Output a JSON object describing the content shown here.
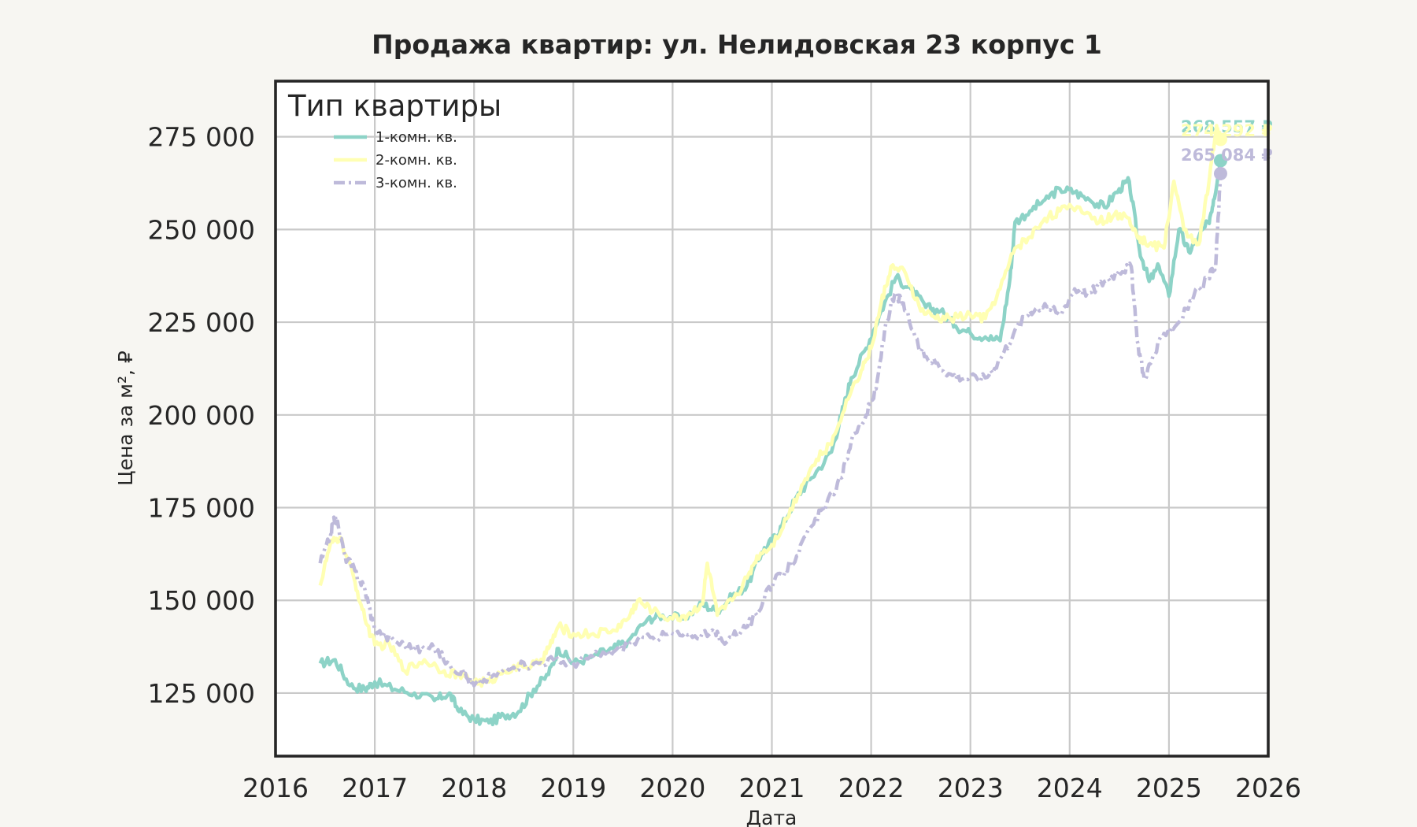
{
  "chart_data": {
    "type": "line",
    "title": "Продажа квартир: ул. Нелидовская 23 корпус 1",
    "xlabel": "Дата",
    "ylabel": "Цена за м², ₽",
    "xlim": [
      2016,
      2026
    ],
    "ylim": [
      108000,
      290000
    ],
    "x_ticks": [
      "2016",
      "2017",
      "2018",
      "2019",
      "2020",
      "2021",
      "2022",
      "2023",
      "2024",
      "2025",
      "2026"
    ],
    "y_ticks": [
      "125 000",
      "150 000",
      "175 000",
      "200 000",
      "225 000",
      "250 000",
      "275 000"
    ],
    "grid": true,
    "legend": {
      "title": "Тип квартиры",
      "placement": "top-left"
    },
    "series": [
      {
        "name": "1-комн. кв.",
        "color": "#8dd3c7",
        "dash": "solid",
        "end_label": "268 557 ₽",
        "points": [
          [
            2016.45,
            133000
          ],
          [
            2016.6,
            134000
          ],
          [
            2016.75,
            127000
          ],
          [
            2016.9,
            126000
          ],
          [
            2017.0,
            128000
          ],
          [
            2017.2,
            126000
          ],
          [
            2017.4,
            125000
          ],
          [
            2017.6,
            123000
          ],
          [
            2017.75,
            125000
          ],
          [
            2017.85,
            120000
          ],
          [
            2018.0,
            118000
          ],
          [
            2018.15,
            117000
          ],
          [
            2018.3,
            119000
          ],
          [
            2018.45,
            120000
          ],
          [
            2018.6,
            126000
          ],
          [
            2018.75,
            130000
          ],
          [
            2018.85,
            137000
          ],
          [
            2019.0,
            133000
          ],
          [
            2019.2,
            135000
          ],
          [
            2019.4,
            137000
          ],
          [
            2019.55,
            139000
          ],
          [
            2019.75,
            145000
          ],
          [
            2019.9,
            146000
          ],
          [
            2020.1,
            145000
          ],
          [
            2020.3,
            149000
          ],
          [
            2020.45,
            147000
          ],
          [
            2020.6,
            151000
          ],
          [
            2020.75,
            154000
          ],
          [
            2020.9,
            163000
          ],
          [
            2021.0,
            166000
          ],
          [
            2021.1,
            170000
          ],
          [
            2021.25,
            178000
          ],
          [
            2021.4,
            183000
          ],
          [
            2021.6,
            190000
          ],
          [
            2021.7,
            200000
          ],
          [
            2021.8,
            210000
          ],
          [
            2021.95,
            218000
          ],
          [
            2022.1,
            228000
          ],
          [
            2022.25,
            237000
          ],
          [
            2022.4,
            234000
          ],
          [
            2022.55,
            229000
          ],
          [
            2022.7,
            228000
          ],
          [
            2022.85,
            224000
          ],
          [
            2023.0,
            222000
          ],
          [
            2023.15,
            221000
          ],
          [
            2023.3,
            220000
          ],
          [
            2023.4,
            237000
          ],
          [
            2023.45,
            252000
          ],
          [
            2023.6,
            255000
          ],
          [
            2023.75,
            258000
          ],
          [
            2023.9,
            261000
          ],
          [
            2024.05,
            260000
          ],
          [
            2024.2,
            258000
          ],
          [
            2024.35,
            256000
          ],
          [
            2024.5,
            261000
          ],
          [
            2024.6,
            263000
          ],
          [
            2024.7,
            245000
          ],
          [
            2024.8,
            236000
          ],
          [
            2024.9,
            240000
          ],
          [
            2025.0,
            232000
          ],
          [
            2025.1,
            250000
          ],
          [
            2025.2,
            244000
          ],
          [
            2025.3,
            248000
          ],
          [
            2025.4,
            252000
          ],
          [
            2025.45,
            258000
          ],
          [
            2025.52,
            268557
          ]
        ]
      },
      {
        "name": "2-комн. кв.",
        "color": "#ffffb3",
        "dash": "solid",
        "end_label": "274 292 ₽",
        "points": [
          [
            2016.45,
            154000
          ],
          [
            2016.55,
            165000
          ],
          [
            2016.65,
            167000
          ],
          [
            2016.8,
            155000
          ],
          [
            2016.9,
            145000
          ],
          [
            2017.0,
            138000
          ],
          [
            2017.15,
            138000
          ],
          [
            2017.3,
            131000
          ],
          [
            2017.5,
            134000
          ],
          [
            2017.7,
            131000
          ],
          [
            2017.85,
            130000
          ],
          [
            2018.0,
            128000
          ],
          [
            2018.15,
            128000
          ],
          [
            2018.3,
            131000
          ],
          [
            2018.5,
            132000
          ],
          [
            2018.65,
            133000
          ],
          [
            2018.75,
            137000
          ],
          [
            2018.85,
            143000
          ],
          [
            2019.0,
            141000
          ],
          [
            2019.2,
            141000
          ],
          [
            2019.4,
            142000
          ],
          [
            2019.55,
            145000
          ],
          [
            2019.65,
            150000
          ],
          [
            2019.8,
            147000
          ],
          [
            2020.0,
            145000
          ],
          [
            2020.15,
            146000
          ],
          [
            2020.3,
            149000
          ],
          [
            2020.35,
            160000
          ],
          [
            2020.45,
            146000
          ],
          [
            2020.6,
            150000
          ],
          [
            2020.75,
            156000
          ],
          [
            2020.85,
            162000
          ],
          [
            2021.0,
            165000
          ],
          [
            2021.15,
            172000
          ],
          [
            2021.3,
            181000
          ],
          [
            2021.45,
            188000
          ],
          [
            2021.6,
            192000
          ],
          [
            2021.75,
            204000
          ],
          [
            2021.9,
            212000
          ],
          [
            2022.0,
            218000
          ],
          [
            2022.1,
            230000
          ],
          [
            2022.2,
            240000
          ],
          [
            2022.35,
            238000
          ],
          [
            2022.5,
            228000
          ],
          [
            2022.65,
            226000
          ],
          [
            2022.8,
            226000
          ],
          [
            2023.0,
            227000
          ],
          [
            2023.15,
            226000
          ],
          [
            2023.3,
            234000
          ],
          [
            2023.45,
            245000
          ],
          [
            2023.6,
            248000
          ],
          [
            2023.75,
            253000
          ],
          [
            2023.9,
            255000
          ],
          [
            2024.1,
            256000
          ],
          [
            2024.3,
            252000
          ],
          [
            2024.45,
            254000
          ],
          [
            2024.6,
            253000
          ],
          [
            2024.7,
            248000
          ],
          [
            2024.8,
            246000
          ],
          [
            2024.95,
            245000
          ],
          [
            2025.05,
            263000
          ],
          [
            2025.15,
            250000
          ],
          [
            2025.3,
            246000
          ],
          [
            2025.4,
            262000
          ],
          [
            2025.48,
            278000
          ],
          [
            2025.52,
            274292
          ]
        ]
      },
      {
        "name": "3-комн. кв.",
        "color": "#bebada",
        "dash": "dashdot",
        "end_label": "265 084 ₽",
        "points": [
          [
            2016.45,
            160000
          ],
          [
            2016.55,
            167000
          ],
          [
            2016.6,
            173000
          ],
          [
            2016.7,
            162000
          ],
          [
            2016.8,
            158000
          ],
          [
            2016.9,
            153000
          ],
          [
            2017.0,
            142000
          ],
          [
            2017.2,
            139000
          ],
          [
            2017.4,
            137000
          ],
          [
            2017.6,
            137000
          ],
          [
            2017.75,
            133000
          ],
          [
            2017.9,
            130000
          ],
          [
            2018.0,
            127000
          ],
          [
            2018.2,
            130000
          ],
          [
            2018.4,
            132000
          ],
          [
            2018.6,
            133000
          ],
          [
            2018.8,
            134000
          ],
          [
            2019.0,
            133000
          ],
          [
            2019.2,
            135000
          ],
          [
            2019.4,
            136000
          ],
          [
            2019.6,
            139000
          ],
          [
            2019.8,
            140000
          ],
          [
            2020.0,
            141000
          ],
          [
            2020.2,
            140000
          ],
          [
            2020.4,
            142000
          ],
          [
            2020.5,
            139000
          ],
          [
            2020.7,
            142000
          ],
          [
            2020.85,
            146000
          ],
          [
            2020.95,
            153000
          ],
          [
            2021.1,
            157000
          ],
          [
            2021.25,
            162000
          ],
          [
            2021.4,
            170000
          ],
          [
            2021.55,
            176000
          ],
          [
            2021.7,
            183000
          ],
          [
            2021.8,
            193000
          ],
          [
            2021.95,
            200000
          ],
          [
            2022.05,
            207000
          ],
          [
            2022.15,
            225000
          ],
          [
            2022.25,
            233000
          ],
          [
            2022.35,
            228000
          ],
          [
            2022.5,
            217000
          ],
          [
            2022.65,
            214000
          ],
          [
            2022.8,
            211000
          ],
          [
            2022.95,
            210000
          ],
          [
            2023.15,
            210000
          ],
          [
            2023.3,
            215000
          ],
          [
            2023.45,
            223000
          ],
          [
            2023.6,
            228000
          ],
          [
            2023.75,
            230000
          ],
          [
            2023.9,
            227000
          ],
          [
            2024.05,
            234000
          ],
          [
            2024.2,
            233000
          ],
          [
            2024.35,
            236000
          ],
          [
            2024.5,
            239000
          ],
          [
            2024.62,
            240000
          ],
          [
            2024.68,
            220000
          ],
          [
            2024.75,
            210000
          ],
          [
            2024.85,
            216000
          ],
          [
            2024.95,
            222000
          ],
          [
            2025.1,
            225000
          ],
          [
            2025.25,
            232000
          ],
          [
            2025.4,
            237000
          ],
          [
            2025.47,
            240000
          ],
          [
            2025.52,
            265084
          ]
        ]
      }
    ]
  }
}
